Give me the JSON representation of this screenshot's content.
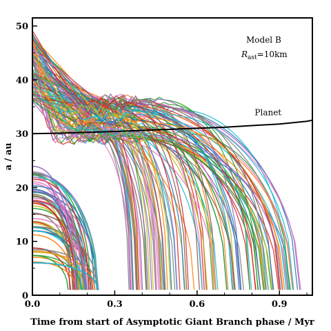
{
  "chart_data": {
    "type": "line",
    "xlabel": "Time from start of Asymptotic Giant Branch phase / Myr",
    "ylabel": "a / au",
    "xlim": [
      0.0,
      1.02
    ],
    "ylim": [
      0,
      51.5
    ],
    "xticks": [
      0.0,
      0.3,
      0.6,
      0.9
    ],
    "xtick_labels": [
      "0.0",
      "0.3",
      "0.6",
      "0.9"
    ],
    "yticks": [
      0,
      10,
      20,
      30,
      40,
      50
    ],
    "ytick_labels": [
      "0",
      "10",
      "20",
      "30",
      "40",
      "50"
    ],
    "grid": false,
    "annotation_model": "Model B",
    "annotation_radius_symbol": "R",
    "annotation_radius_subscript": "ast",
    "annotation_radius_value": "=10km",
    "planet_label": "Planet",
    "planet": {
      "x": [
        0.0,
        0.1,
        0.2,
        0.3,
        0.4,
        0.5,
        0.6,
        0.7,
        0.8,
        0.9,
        1.0,
        1.02
      ],
      "y": [
        30.0,
        30.1,
        30.25,
        30.4,
        30.6,
        30.8,
        31.0,
        31.2,
        31.5,
        31.8,
        32.3,
        32.5
      ]
    },
    "asteroid_groups": {
      "inner_start_a_range": [
        6,
        24
      ],
      "inner_end_t_range": [
        0.13,
        0.25
      ],
      "outer_start_a_range": [
        36,
        49.5
      ],
      "outer_end_t_range": [
        0.35,
        0.99
      ],
      "final_a": 1,
      "scattered_band_a_range": [
        29,
        36.5
      ]
    },
    "series_colors": [
      "#1f77b4",
      "#ff7f0e",
      "#2ca02c",
      "#d62728",
      "#9467bd",
      "#8c564b",
      "#e377c2",
      "#7f7f7f",
      "#bcbd22",
      "#17becf"
    ]
  }
}
